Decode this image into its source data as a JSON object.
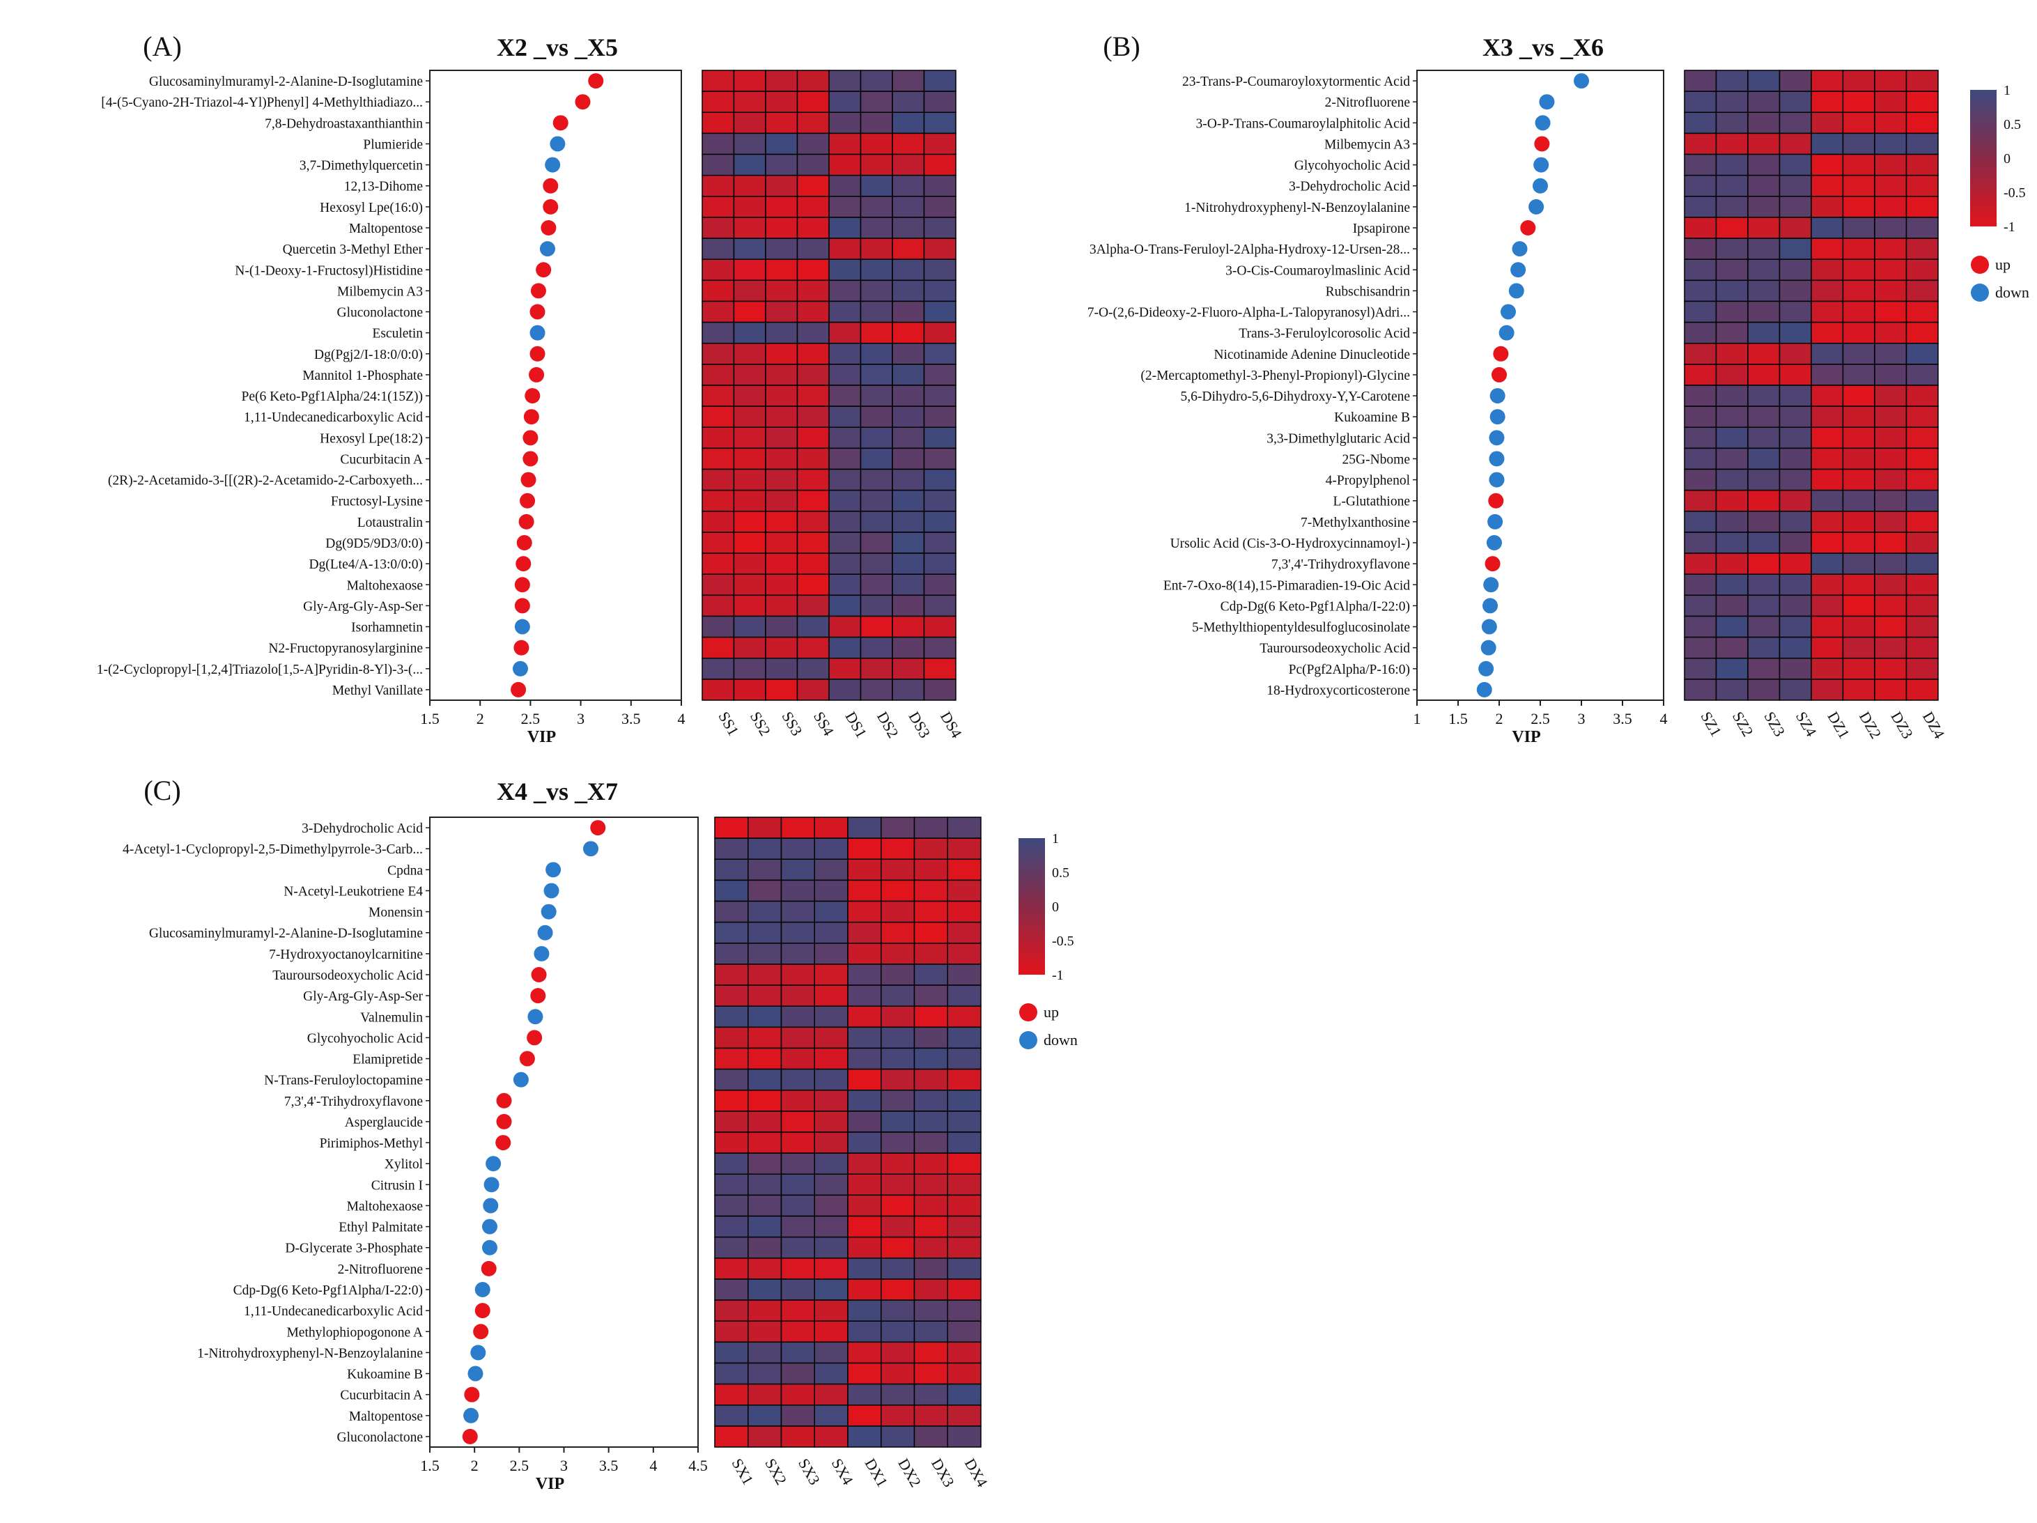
{
  "colors": {
    "up": "#e8141c",
    "down": "#2c7ccc",
    "heat_high": "#3e4a7e",
    "heat_mid": "#8a2a48",
    "heat_low": "#e2141c",
    "heat_border": "#000000"
  },
  "legend": {
    "up": "up",
    "down": "down"
  },
  "colorbar": {
    "ticks": [
      "1",
      "0.5",
      "0",
      "-0.5",
      "-1"
    ]
  },
  "chart_data": [
    {
      "type": "scatter",
      "panel": "(A)",
      "title": "X2 _vs _X5",
      "xlabel": "VIP",
      "xlim": [
        1.5,
        4
      ],
      "xticks": [
        "1.5",
        "2",
        "2.5",
        "3",
        "3.5",
        "4"
      ],
      "samples": [
        "SS1",
        "SS2",
        "SS3",
        "SS4",
        "DS1",
        "DS2",
        "DS3",
        "DS4"
      ],
      "items": [
        {
          "name": "Glucosaminylmuramyl-2-Alanine-D-Isoglutamine",
          "vip": 3.15,
          "dir": "up"
        },
        {
          "name": "[4-(5-Cyano-2H-Triazol-4-Yl)Phenyl] 4-Methylthiadiazo...",
          "vip": 3.02,
          "dir": "up"
        },
        {
          "name": "7,8-Dehydroastaxanthianthin",
          "vip": 2.8,
          "dir": "up"
        },
        {
          "name": "Plumieride",
          "vip": 2.77,
          "dir": "down"
        },
        {
          "name": "3,7-Dimethylquercetin",
          "vip": 2.72,
          "dir": "down"
        },
        {
          "name": "12,13-Dihome",
          "vip": 2.7,
          "dir": "up"
        },
        {
          "name": "Hexosyl Lpe(16:0)",
          "vip": 2.7,
          "dir": "up"
        },
        {
          "name": "Maltopentose",
          "vip": 2.68,
          "dir": "up"
        },
        {
          "name": "Quercetin 3-Methyl Ether",
          "vip": 2.67,
          "dir": "down"
        },
        {
          "name": "N-(1-Deoxy-1-Fructosyl)Histidine",
          "vip": 2.63,
          "dir": "up"
        },
        {
          "name": "Milbemycin A3",
          "vip": 2.58,
          "dir": "up"
        },
        {
          "name": "Gluconolactone",
          "vip": 2.57,
          "dir": "up"
        },
        {
          "name": "Esculetin",
          "vip": 2.57,
          "dir": "down"
        },
        {
          "name": "Dg(Pgj2/I-18:0/0:0)",
          "vip": 2.57,
          "dir": "up"
        },
        {
          "name": "Mannitol 1-Phosphate",
          "vip": 2.56,
          "dir": "up"
        },
        {
          "name": "Pe(6 Keto-Pgf1Alpha/24:1(15Z))",
          "vip": 2.52,
          "dir": "up"
        },
        {
          "name": "1,11-Undecanedicarboxylic Acid",
          "vip": 2.51,
          "dir": "up"
        },
        {
          "name": "Hexosyl Lpe(18:2)",
          "vip": 2.5,
          "dir": "up"
        },
        {
          "name": "Cucurbitacin A",
          "vip": 2.5,
          "dir": "up"
        },
        {
          "name": "(2R)-2-Acetamido-3-[[(2R)-2-Acetamido-2-Carboxyeth...",
          "vip": 2.48,
          "dir": "up"
        },
        {
          "name": "Fructosyl-Lysine",
          "vip": 2.47,
          "dir": "up"
        },
        {
          "name": "Lotaustralin",
          "vip": 2.46,
          "dir": "up"
        },
        {
          "name": "Dg(9D5/9D3/0:0)",
          "vip": 2.44,
          "dir": "up"
        },
        {
          "name": "Dg(Lte4/A-13:0/0:0)",
          "vip": 2.43,
          "dir": "up"
        },
        {
          "name": "Maltohexaose",
          "vip": 2.42,
          "dir": "up"
        },
        {
          "name": "Gly-Arg-Gly-Asp-Ser",
          "vip": 2.42,
          "dir": "up"
        },
        {
          "name": "Isorhamnetin",
          "vip": 2.42,
          "dir": "down"
        },
        {
          "name": "N2-Fructopyranosylarginine",
          "vip": 2.41,
          "dir": "up"
        },
        {
          "name": "1-(2-Cyclopropyl-[1,2,4]Triazolo[1,5-A]Pyridin-8-Yl)-3-(...",
          "vip": 2.4,
          "dir": "down"
        },
        {
          "name": "Methyl Vanillate",
          "vip": 2.38,
          "dir": "up"
        }
      ]
    },
    {
      "type": "scatter",
      "panel": "(B)",
      "title": "X3 _vs _X6",
      "xlabel": "VIP",
      "xlim": [
        1,
        4
      ],
      "xticks": [
        "1",
        "1.5",
        "2",
        "2.5",
        "3",
        "3.5",
        "4"
      ],
      "samples": [
        "SZ1",
        "SZ2",
        "SZ3",
        "SZ4",
        "DZ1",
        "DZ2",
        "DZ3",
        "DZ4"
      ],
      "items": [
        {
          "name": "23-Trans-P-Coumaroyloxytormentic Acid",
          "vip": 3.0,
          "dir": "down"
        },
        {
          "name": "2-Nitrofluorene",
          "vip": 2.58,
          "dir": "down"
        },
        {
          "name": "3-O-P-Trans-Coumaroylalphitolic Acid",
          "vip": 2.53,
          "dir": "down"
        },
        {
          "name": "Milbemycin A3",
          "vip": 2.52,
          "dir": "up"
        },
        {
          "name": "Glycohyocholic Acid",
          "vip": 2.51,
          "dir": "down"
        },
        {
          "name": "3-Dehydrocholic Acid",
          "vip": 2.5,
          "dir": "down"
        },
        {
          "name": "1-Nitrohydroxyphenyl-N-Benzoylalanine",
          "vip": 2.45,
          "dir": "down"
        },
        {
          "name": "Ipsapirone",
          "vip": 2.35,
          "dir": "up"
        },
        {
          "name": "3Alpha-O-Trans-Feruloyl-2Alpha-Hydroxy-12-Ursen-28...",
          "vip": 2.25,
          "dir": "down"
        },
        {
          "name": "3-O-Cis-Coumaroylmaslinic Acid",
          "vip": 2.23,
          "dir": "down"
        },
        {
          "name": "Rubschisandrin",
          "vip": 2.21,
          "dir": "down"
        },
        {
          "name": "7-O-(2,6-Dideoxy-2-Fluoro-Alpha-L-Talopyranosyl)Adri...",
          "vip": 2.11,
          "dir": "down"
        },
        {
          "name": "Trans-3-Feruloylcorosolic Acid",
          "vip": 2.09,
          "dir": "down"
        },
        {
          "name": "Nicotinamide Adenine Dinucleotide",
          "vip": 2.02,
          "dir": "up"
        },
        {
          "name": "(2-Mercaptomethyl-3-Phenyl-Propionyl)-Glycine",
          "vip": 2.0,
          "dir": "up"
        },
        {
          "name": "5,6-Dihydro-5,6-Dihydroxy-Y,Y-Carotene",
          "vip": 1.98,
          "dir": "down"
        },
        {
          "name": "Kukoamine B",
          "vip": 1.98,
          "dir": "down"
        },
        {
          "name": "3,3-Dimethylglutaric Acid",
          "vip": 1.97,
          "dir": "down"
        },
        {
          "name": "25G-Nbome",
          "vip": 1.97,
          "dir": "down"
        },
        {
          "name": "4-Propylphenol",
          "vip": 1.97,
          "dir": "down"
        },
        {
          "name": "L-Glutathione",
          "vip": 1.96,
          "dir": "up"
        },
        {
          "name": "7-Methylxanthosine",
          "vip": 1.95,
          "dir": "down"
        },
        {
          "name": "Ursolic Acid (Cis-3-O-Hydroxycinnamoyl-)",
          "vip": 1.94,
          "dir": "down"
        },
        {
          "name": "7,3',4'-Trihydroxyflavone",
          "vip": 1.92,
          "dir": "up"
        },
        {
          "name": "Ent-7-Oxo-8(14),15-Pimaradien-19-Oic Acid",
          "vip": 1.9,
          "dir": "down"
        },
        {
          "name": "Cdp-Dg(6 Keto-Pgf1Alpha/I-22:0)",
          "vip": 1.89,
          "dir": "down"
        },
        {
          "name": "5-Methylthiopentyldesulfoglucosinolate",
          "vip": 1.88,
          "dir": "down"
        },
        {
          "name": "Tauroursodeoxycholic Acid",
          "vip": 1.87,
          "dir": "down"
        },
        {
          "name": "Pc(Pgf2Alpha/P-16:0)",
          "vip": 1.84,
          "dir": "down"
        },
        {
          "name": "18-Hydroxycorticosterone",
          "vip": 1.82,
          "dir": "down"
        }
      ]
    },
    {
      "type": "scatter",
      "panel": "(C)",
      "title": "X4 _vs _X7",
      "xlabel": "VIP",
      "xlim": [
        1.5,
        4.5
      ],
      "xticks": [
        "1.5",
        "2",
        "2.5",
        "3",
        "3.5",
        "4",
        "4.5"
      ],
      "samples": [
        "SX1",
        "SX2",
        "SX3",
        "SX4",
        "DX1",
        "DX2",
        "DX3",
        "DX4"
      ],
      "items": [
        {
          "name": "3-Dehydrocholic Acid",
          "vip": 3.38,
          "dir": "up"
        },
        {
          "name": "4-Acetyl-1-Cyclopropyl-2,5-Dimethylpyrrole-3-Carb...",
          "vip": 3.3,
          "dir": "down"
        },
        {
          "name": "Cpdna",
          "vip": 2.88,
          "dir": "down"
        },
        {
          "name": "N-Acetyl-Leukotriene E4",
          "vip": 2.86,
          "dir": "down"
        },
        {
          "name": "Monensin",
          "vip": 2.83,
          "dir": "down"
        },
        {
          "name": "Glucosaminylmuramyl-2-Alanine-D-Isoglutamine",
          "vip": 2.79,
          "dir": "down"
        },
        {
          "name": "7-Hydroxyoctanoylcarnitine",
          "vip": 2.75,
          "dir": "down"
        },
        {
          "name": "Tauroursodeoxycholic Acid",
          "vip": 2.72,
          "dir": "up"
        },
        {
          "name": "Gly-Arg-Gly-Asp-Ser",
          "vip": 2.71,
          "dir": "up"
        },
        {
          "name": "Valnemulin",
          "vip": 2.68,
          "dir": "down"
        },
        {
          "name": "Glycohyocholic Acid",
          "vip": 2.67,
          "dir": "up"
        },
        {
          "name": "Elamipretide",
          "vip": 2.59,
          "dir": "up"
        },
        {
          "name": "N-Trans-Feruloyloctopamine",
          "vip": 2.52,
          "dir": "down"
        },
        {
          "name": "7,3',4'-Trihydroxyflavone",
          "vip": 2.33,
          "dir": "up"
        },
        {
          "name": "Asperglaucide",
          "vip": 2.33,
          "dir": "up"
        },
        {
          "name": "Pirimiphos-Methyl",
          "vip": 2.32,
          "dir": "up"
        },
        {
          "name": "Xylitol",
          "vip": 2.21,
          "dir": "down"
        },
        {
          "name": "Citrusin I",
          "vip": 2.19,
          "dir": "down"
        },
        {
          "name": "Maltohexaose",
          "vip": 2.18,
          "dir": "down"
        },
        {
          "name": "Ethyl Palmitate",
          "vip": 2.17,
          "dir": "down"
        },
        {
          "name": "D-Glycerate 3-Phosphate",
          "vip": 2.17,
          "dir": "down"
        },
        {
          "name": "2-Nitrofluorene",
          "vip": 2.16,
          "dir": "up"
        },
        {
          "name": "Cdp-Dg(6 Keto-Pgf1Alpha/I-22:0)",
          "vip": 2.09,
          "dir": "down"
        },
        {
          "name": "1,11-Undecanedicarboxylic Acid",
          "vip": 2.09,
          "dir": "up"
        },
        {
          "name": "Methylophiopogonone A",
          "vip": 2.07,
          "dir": "up"
        },
        {
          "name": "1-Nitrohydroxyphenyl-N-Benzoylalanine",
          "vip": 2.04,
          "dir": "down"
        },
        {
          "name": "Kukoamine B",
          "vip": 2.01,
          "dir": "down"
        },
        {
          "name": "Cucurbitacin A",
          "vip": 1.97,
          "dir": "up"
        },
        {
          "name": "Maltopentose",
          "vip": 1.96,
          "dir": "down"
        },
        {
          "name": "Gluconolactone",
          "vip": 1.95,
          "dir": "up"
        }
      ]
    }
  ]
}
